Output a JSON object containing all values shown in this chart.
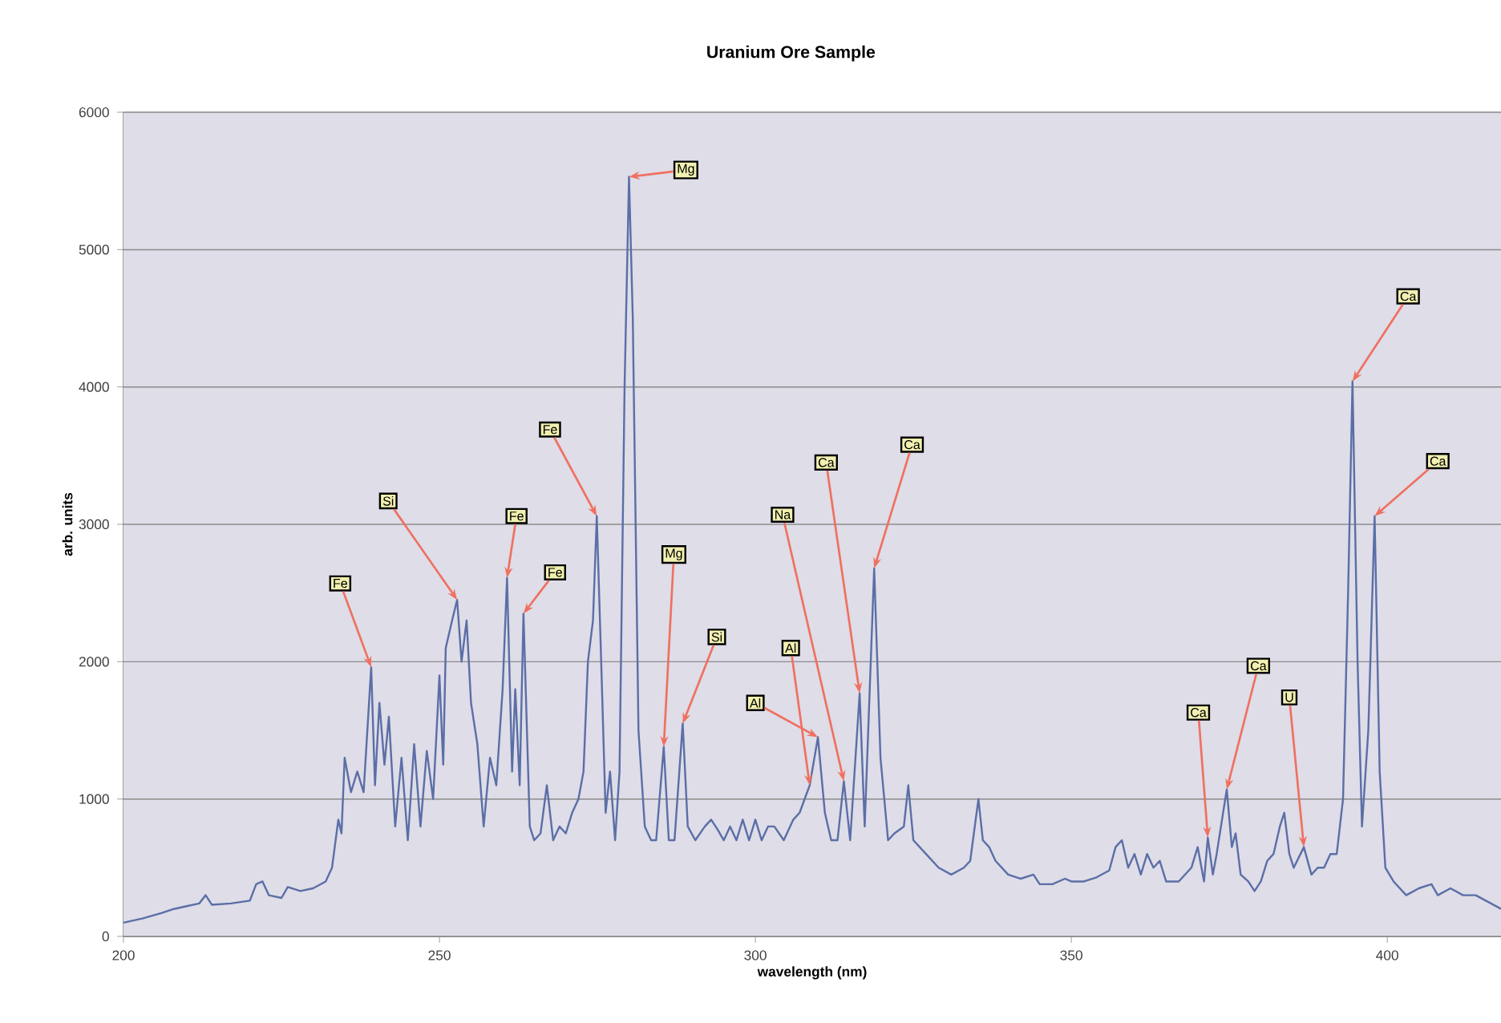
{
  "chart_data": {
    "type": "line",
    "title": "Uranium Ore Sample",
    "xlabel": "wavelength (nm)",
    "ylabel": "arb. units",
    "xlim": [
      200,
      418
    ],
    "ylim": [
      0,
      6000
    ],
    "xticks": [
      200,
      250,
      300,
      350,
      400
    ],
    "yticks": [
      0,
      1000,
      2000,
      3000,
      4000,
      5000,
      6000
    ],
    "grid": "y",
    "x": [
      200,
      203,
      206,
      208,
      210,
      212,
      213,
      214,
      217,
      220,
      221,
      222,
      223,
      225,
      226,
      228,
      230,
      232,
      233,
      234,
      234.5,
      235,
      236,
      237,
      238,
      239.2,
      239.8,
      240.5,
      241.3,
      242,
      243,
      244,
      245,
      246,
      247,
      248,
      249,
      250,
      250.6,
      251,
      252,
      252.8,
      253.5,
      254.3,
      255,
      256,
      257,
      258,
      259,
      260,
      260.7,
      261.5,
      262,
      262.7,
      263.3,
      264.3,
      265,
      266,
      267,
      268,
      269,
      270,
      271,
      272,
      272.8,
      273.5,
      274.3,
      274.9,
      275.6,
      276.3,
      277,
      277.8,
      278.5,
      279.3,
      280,
      280.6,
      281.5,
      282.5,
      283.5,
      284.3,
      285.5,
      286.3,
      287.2,
      288.5,
      289.3,
      290.5,
      292,
      293,
      294,
      295,
      296,
      297,
      298,
      299,
      300,
      301,
      302,
      303,
      304.5,
      306,
      307,
      308.6,
      309.9,
      311,
      312,
      313,
      314,
      315,
      316.5,
      317.3,
      318.8,
      319.8,
      321,
      322,
      323.5,
      324.2,
      325,
      327,
      329,
      331,
      333,
      334,
      335.3,
      336,
      337,
      338,
      340,
      342,
      344,
      345,
      347,
      349,
      350,
      352,
      354,
      356,
      357,
      358,
      359,
      360,
      361,
      362,
      363,
      364,
      365,
      367,
      369,
      370,
      371,
      371.6,
      372.4,
      373,
      374.6,
      375.4,
      376,
      376.8,
      378,
      379,
      380,
      381,
      382,
      383,
      383.7,
      384.5,
      385.2,
      386.8,
      388,
      389,
      390,
      391,
      392,
      393,
      393.8,
      394.5,
      395.3,
      396,
      397,
      398,
      398.8,
      399.7,
      401,
      403,
      405,
      407,
      408,
      410,
      412,
      414,
      416,
      418
    ],
    "series": [
      {
        "color": "#5b6ea6",
        "values": [
          100,
          130,
          170,
          200,
          220,
          240,
          300,
          230,
          240,
          260,
          380,
          400,
          300,
          280,
          360,
          330,
          350,
          400,
          500,
          850,
          750,
          1300,
          1050,
          1200,
          1050,
          1960,
          1100,
          1700,
          1250,
          1600,
          800,
          1300,
          700,
          1400,
          800,
          1350,
          1000,
          1900,
          1250,
          2100,
          2300,
          2450,
          2000,
          2300,
          1700,
          1400,
          800,
          1300,
          1100,
          1800,
          2610,
          1200,
          1800,
          1100,
          2350,
          800,
          700,
          750,
          1100,
          700,
          800,
          750,
          900,
          1000,
          1200,
          2000,
          2300,
          3060,
          2000,
          900,
          1200,
          700,
          1200,
          4000,
          5530,
          4500,
          1500,
          800,
          700,
          700,
          1380,
          700,
          700,
          1550,
          800,
          700,
          800,
          850,
          780,
          700,
          800,
          700,
          850,
          700,
          850,
          700,
          800,
          800,
          700,
          850,
          900,
          1100,
          1450,
          900,
          700,
          700,
          1130,
          700,
          1770,
          800,
          2680,
          1300,
          700,
          750,
          800,
          1100,
          700,
          600,
          500,
          450,
          500,
          550,
          1000,
          700,
          650,
          550,
          450,
          420,
          450,
          380,
          380,
          420,
          400,
          400,
          430,
          480,
          650,
          700,
          500,
          600,
          450,
          600,
          500,
          550,
          400,
          400,
          500,
          650,
          400,
          720,
          450,
          600,
          1070,
          650,
          750,
          450,
          400,
          330,
          400,
          550,
          600,
          800,
          900,
          600,
          500,
          650,
          450,
          500,
          500,
          600,
          600,
          1000,
          2500,
          4040,
          2000,
          800,
          1500,
          3060,
          1200,
          500,
          400,
          300,
          350,
          380,
          300,
          350,
          300,
          300,
          250,
          200
        ]
      }
    ],
    "annotations": [
      {
        "text": "Fe",
        "x": 239.2,
        "y": 1960
      },
      {
        "text": "Si",
        "x": 252.8,
        "y": 2450
      },
      {
        "text": "Fe",
        "x": 260.7,
        "y": 2610
      },
      {
        "text": "Fe",
        "x": 263.3,
        "y": 2350
      },
      {
        "text": "Fe",
        "x": 274.9,
        "y": 3060
      },
      {
        "text": "Mg",
        "x": 280,
        "y": 5530
      },
      {
        "text": "Mg",
        "x": 285.5,
        "y": 1380
      },
      {
        "text": "Si",
        "x": 288.5,
        "y": 1550
      },
      {
        "text": "Al",
        "x": 308.6,
        "y": 1100
      },
      {
        "text": "Al",
        "x": 309.9,
        "y": 1450
      },
      {
        "text": "Na",
        "x": 314,
        "y": 1130
      },
      {
        "text": "Ca",
        "x": 316.5,
        "y": 1770
      },
      {
        "text": "Ca",
        "x": 318.8,
        "y": 2680
      },
      {
        "text": "Ca",
        "x": 371.6,
        "y": 720
      },
      {
        "text": "Ca",
        "x": 374.6,
        "y": 1070
      },
      {
        "text": "U",
        "x": 386.8,
        "y": 650
      },
      {
        "text": "Ca",
        "x": 394.5,
        "y": 4040
      },
      {
        "text": "Ca",
        "x": 398,
        "y": 3060
      }
    ]
  }
}
